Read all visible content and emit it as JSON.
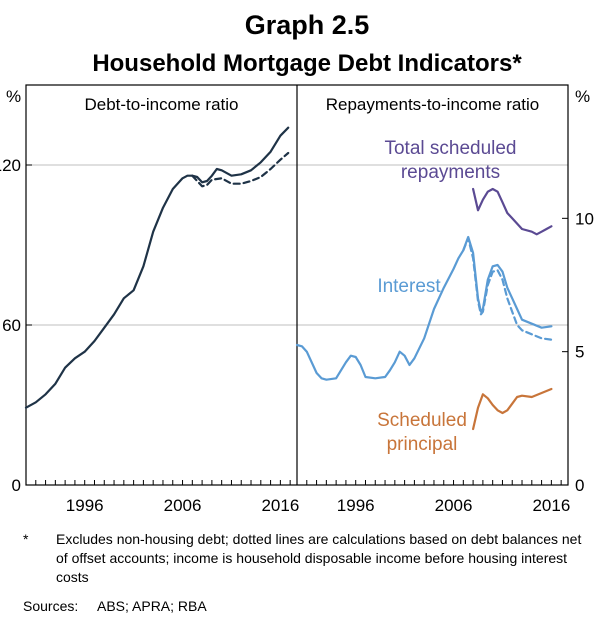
{
  "header": {
    "graph_number": "Graph 2.5",
    "title": "Household Mortgage Debt Indicators*"
  },
  "footnote": {
    "marker": "*",
    "text": "Excludes non-housing debt; dotted lines are calculations based on debt balances net of offset accounts; income is household disposable income before housing interest costs"
  },
  "sources": {
    "label": "Sources:",
    "text": "ABS; APRA; RBA"
  },
  "colors": {
    "debt": "#1f3347",
    "total_repayments": "#5b4a93",
    "interest": "#5a9bd4",
    "principal": "#c8753a",
    "grid": "#bfbfbf"
  },
  "chart_data": [
    {
      "type": "line",
      "title": "Debt-to-income ratio",
      "unit_label": "%",
      "xlim": [
        1990,
        2017.7
      ],
      "ylim": [
        0,
        150
      ],
      "x_ticks": [
        1996,
        2006,
        2016
      ],
      "y_ticks": [
        0,
        60,
        120
      ],
      "y_tick_labels": [
        "0",
        "60",
        "120"
      ],
      "grid": true,
      "series": [
        {
          "name": "",
          "style": "solid",
          "points": [
            [
              1990.0,
              29
            ],
            [
              1991.0,
              31
            ],
            [
              1992.0,
              34
            ],
            [
              1993.0,
              38
            ],
            [
              1994.0,
              44
            ],
            [
              1995.0,
              47.5
            ],
            [
              1996.0,
              50
            ],
            [
              1997.0,
              54
            ],
            [
              1998.0,
              59
            ],
            [
              1999.0,
              64
            ],
            [
              2000.0,
              70
            ],
            [
              2001.0,
              73
            ],
            [
              2002.0,
              82
            ],
            [
              2003.0,
              95
            ],
            [
              2004.0,
              104
            ],
            [
              2005.0,
              111
            ],
            [
              2006.0,
              115
            ],
            [
              2006.5,
              116
            ],
            [
              2007.0,
              116
            ],
            [
              2007.5,
              115.5
            ],
            [
              2008.0,
              113.5
            ],
            [
              2008.5,
              114
            ],
            [
              2009.0,
              116
            ],
            [
              2009.5,
              118.5
            ],
            [
              2010.0,
              118
            ],
            [
              2011.0,
              116
            ],
            [
              2012.0,
              116.5
            ],
            [
              2013.0,
              118
            ],
            [
              2014.0,
              121
            ],
            [
              2015.0,
              125
            ],
            [
              2016.0,
              131
            ],
            [
              2016.8,
              134
            ]
          ]
        },
        {
          "name": "",
          "style": "dashed",
          "points": [
            [
              2007.0,
              116
            ],
            [
              2007.5,
              114
            ],
            [
              2008.0,
              112
            ],
            [
              2008.5,
              112.5
            ],
            [
              2009.0,
              114.5
            ],
            [
              2010.0,
              115
            ],
            [
              2011.0,
              113
            ],
            [
              2012.0,
              113
            ],
            [
              2013.0,
              114
            ],
            [
              2014.0,
              115.5
            ],
            [
              2015.0,
              118.5
            ],
            [
              2016.0,
              122
            ],
            [
              2016.8,
              124.5
            ]
          ]
        }
      ]
    },
    {
      "type": "line",
      "title": "Repayments-to-income ratio",
      "unit_label": "%",
      "xlim": [
        1990,
        2017.7
      ],
      "ylim": [
        0,
        15
      ],
      "x_ticks": [
        1996,
        2006,
        2016
      ],
      "y_ticks": [
        0,
        5,
        10
      ],
      "y_tick_labels": [
        "0",
        "5",
        "10"
      ],
      "grid": true,
      "annotations": [
        {
          "text": [
            "Total scheduled",
            "repayments"
          ],
          "series": "total"
        },
        {
          "text": [
            "Interest"
          ],
          "series": "interest"
        },
        {
          "text": [
            "Scheduled",
            "principal"
          ],
          "series": "principal"
        }
      ],
      "series": [
        {
          "name": "Total scheduled repayments",
          "key": "total",
          "style": "solid",
          "points": [
            [
              2008.0,
              11.1
            ],
            [
              2008.5,
              10.3
            ],
            [
              2009.0,
              10.7
            ],
            [
              2009.5,
              11.0
            ],
            [
              2010.0,
              11.1
            ],
            [
              2010.5,
              11.0
            ],
            [
              2011.0,
              10.6
            ],
            [
              2011.5,
              10.2
            ],
            [
              2012.0,
              10.0
            ],
            [
              2013.0,
              9.6
            ],
            [
              2014.0,
              9.5
            ],
            [
              2014.5,
              9.4
            ],
            [
              2015.0,
              9.5
            ],
            [
              2015.5,
              9.6
            ],
            [
              2016.0,
              9.7
            ]
          ]
        },
        {
          "name": "Interest",
          "key": "interest",
          "style": "solid",
          "points": [
            [
              1990.0,
              5.25
            ],
            [
              1990.5,
              5.2
            ],
            [
              1991.0,
              5.0
            ],
            [
              1992.0,
              4.2
            ],
            [
              1992.5,
              4.0
            ],
            [
              1993.0,
              3.95
            ],
            [
              1994.0,
              4.0
            ],
            [
              1995.0,
              4.6
            ],
            [
              1995.5,
              4.85
            ],
            [
              1996.0,
              4.8
            ],
            [
              1996.5,
              4.5
            ],
            [
              1997.0,
              4.05
            ],
            [
              1998.0,
              4.0
            ],
            [
              1999.0,
              4.05
            ],
            [
              1999.5,
              4.3
            ],
            [
              2000.0,
              4.6
            ],
            [
              2000.5,
              5.0
            ],
            [
              2001.0,
              4.85
            ],
            [
              2001.5,
              4.5
            ],
            [
              2002.0,
              4.75
            ],
            [
              2003.0,
              5.5
            ],
            [
              2004.0,
              6.6
            ],
            [
              2005.0,
              7.4
            ],
            [
              2006.0,
              8.1
            ],
            [
              2006.5,
              8.5
            ],
            [
              2007.0,
              8.8
            ],
            [
              2007.5,
              9.3
            ],
            [
              2008.0,
              8.7
            ],
            [
              2008.5,
              7.0
            ],
            [
              2008.8,
              6.5
            ],
            [
              2009.0,
              6.6
            ],
            [
              2009.5,
              7.7
            ],
            [
              2010.0,
              8.2
            ],
            [
              2010.5,
              8.25
            ],
            [
              2011.0,
              8.0
            ],
            [
              2011.5,
              7.4
            ],
            [
              2012.0,
              7.0
            ],
            [
              2012.5,
              6.6
            ],
            [
              2013.0,
              6.2
            ],
            [
              2014.0,
              6.05
            ],
            [
              2015.0,
              5.9
            ],
            [
              2016.0,
              5.95
            ]
          ]
        },
        {
          "name": "Interest",
          "key": "interest-dashed",
          "style": "dashed",
          "points": [
            [
              2007.0,
              8.8
            ],
            [
              2007.5,
              9.25
            ],
            [
              2008.0,
              8.5
            ],
            [
              2008.5,
              6.9
            ],
            [
              2008.8,
              6.4
            ],
            [
              2009.0,
              6.5
            ],
            [
              2009.5,
              7.5
            ],
            [
              2010.0,
              8.0
            ],
            [
              2010.5,
              8.05
            ],
            [
              2011.0,
              7.7
            ],
            [
              2011.5,
              7.0
            ],
            [
              2012.0,
              6.5
            ],
            [
              2012.5,
              6.0
            ],
            [
              2013.0,
              5.8
            ],
            [
              2014.0,
              5.65
            ],
            [
              2015.0,
              5.5
            ],
            [
              2016.0,
              5.45
            ]
          ]
        },
        {
          "name": "Scheduled principal",
          "key": "principal",
          "style": "solid",
          "points": [
            [
              2008.0,
              2.1
            ],
            [
              2008.5,
              2.9
            ],
            [
              2009.0,
              3.4
            ],
            [
              2009.5,
              3.25
            ],
            [
              2010.0,
              3.0
            ],
            [
              2010.5,
              2.8
            ],
            [
              2011.0,
              2.7
            ],
            [
              2011.5,
              2.8
            ],
            [
              2012.0,
              3.05
            ],
            [
              2012.5,
              3.3
            ],
            [
              2013.0,
              3.35
            ],
            [
              2014.0,
              3.3
            ],
            [
              2015.0,
              3.45
            ],
            [
              2016.0,
              3.6
            ]
          ]
        }
      ]
    }
  ]
}
